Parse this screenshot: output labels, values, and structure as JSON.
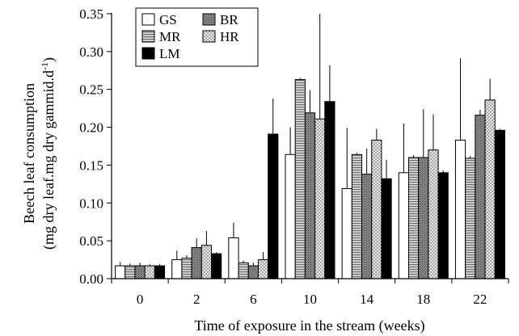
{
  "chart_data": {
    "type": "bar",
    "xlabel": "Time of exposure in the stream (weeks)",
    "ylabel_line1": "Beech leaf consumption",
    "ylabel_line2_prefix": "(mg dry leaf.mg dry gammid.d",
    "ylabel_superscript": "-1",
    "ylabel_line2_suffix": ")",
    "ylim": [
      0,
      0.35
    ],
    "yticks": [
      "0.00",
      "0.05",
      "0.10",
      "0.15",
      "0.20",
      "0.25",
      "0.30",
      "0.35"
    ],
    "categories": [
      "0",
      "2",
      "6",
      "10",
      "14",
      "18",
      "22"
    ],
    "legend_position": "top-left",
    "series": [
      {
        "name": "GS",
        "pattern": "white",
        "values": [
          0.017,
          0.025,
          0.054,
          0.164,
          0.119,
          0.14,
          0.183
        ],
        "errors": [
          0.005,
          0.012,
          0.02,
          0.036,
          0.08,
          0.065,
          0.108
        ]
      },
      {
        "name": "MR",
        "pattern": "hlines",
        "values": [
          0.017,
          0.027,
          0.021,
          0.263,
          0.164,
          0.16,
          0.159
        ],
        "errors": [
          0.003,
          0.004,
          0.003,
          0.002,
          0.002,
          0.003,
          0.003
        ]
      },
      {
        "name": "BR",
        "pattern": "dots",
        "values": [
          0.017,
          0.041,
          0.017,
          0.219,
          0.138,
          0.16,
          0.216
        ],
        "errors": [
          0.004,
          0.012,
          0.004,
          0.03,
          0.034,
          0.064,
          0.007
        ]
      },
      {
        "name": "HR",
        "pattern": "checker",
        "values": [
          0.017,
          0.044,
          0.025,
          0.211,
          0.183,
          0.17,
          0.236
        ],
        "errors": [
          0.002,
          0.019,
          0.01,
          0.139,
          0.015,
          0.047,
          0.028
        ]
      },
      {
        "name": "LM",
        "pattern": "black",
        "values": [
          0.017,
          0.033,
          0.191,
          0.234,
          0.132,
          0.14,
          0.196
        ],
        "errors": [
          0.002,
          0.002,
          0.047,
          0.048,
          0.025,
          0.003,
          0.002
        ]
      }
    ],
    "legend_order": [
      "GS",
      "BR",
      "MR",
      "HR",
      "LM"
    ]
  }
}
